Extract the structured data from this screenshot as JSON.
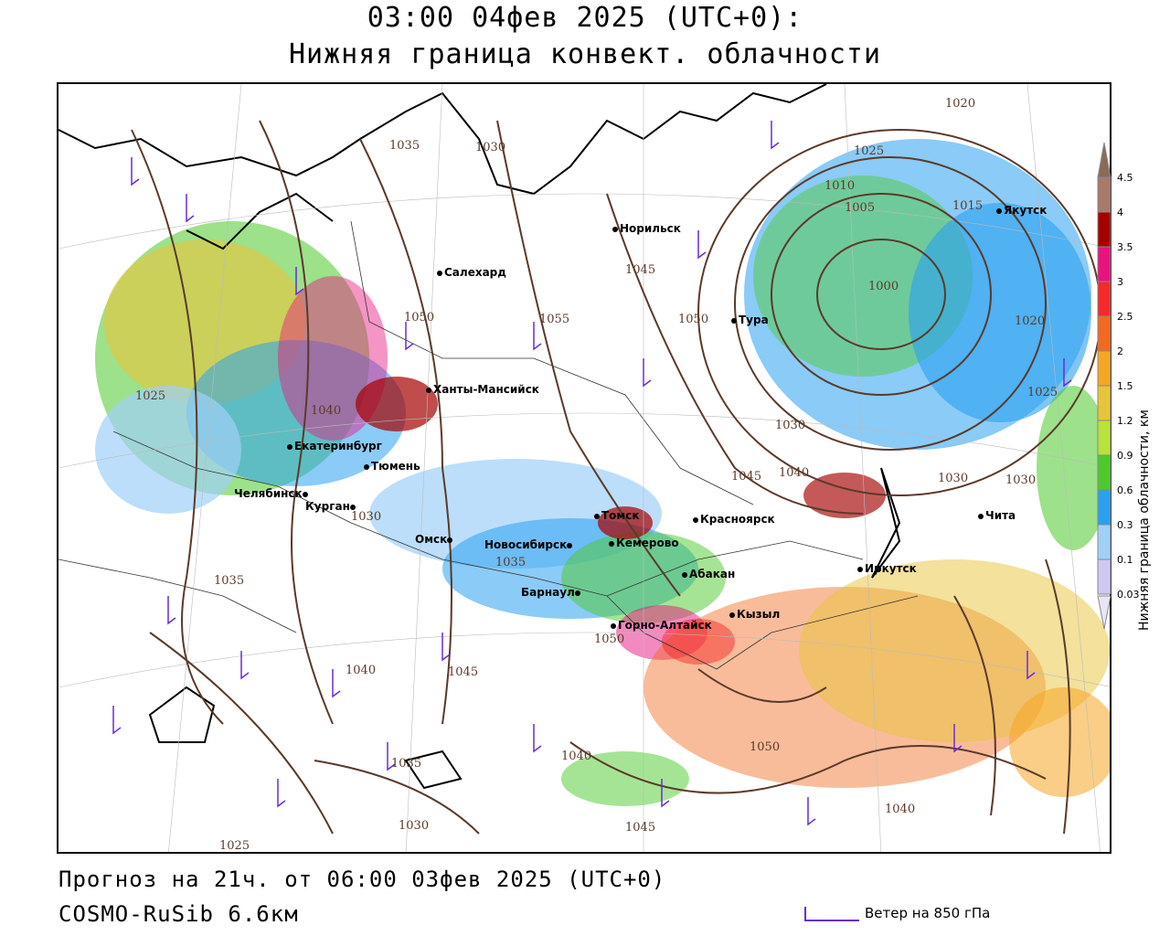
{
  "header": {
    "datetime": "03:00 04фев 2025 (UTC+0):",
    "parameter": "Нижняя граница конвект. облачности"
  },
  "footer": {
    "forecast": "Прогноз на 21ч. от 06:00 03фев 2025 (UTC+0)",
    "model": "COSMO-RuSib 6.6км",
    "wind_legend": "Ветер на 850 гПа"
  },
  "legend": {
    "title": "Нижняя граница облачности, км",
    "ticks": [
      "4.5",
      "4",
      "3.5",
      "3",
      "2.5",
      "2",
      "1.5",
      "1.2",
      "0.9",
      "0.6",
      "0.3",
      "0.1",
      "0.03"
    ],
    "colors": [
      "#a9796a",
      "#a50000",
      "#e8137f",
      "#f52a2a",
      "#f26a1f",
      "#f5a623",
      "#e8c43a",
      "#b9e23b",
      "#4dc92b",
      "#2aa0f0",
      "#9fd0f8",
      "#cfc8f3"
    ]
  },
  "cities": [
    {
      "name": "Норильск"
    },
    {
      "name": "Якутск"
    },
    {
      "name": "Салехард"
    },
    {
      "name": "Тура"
    },
    {
      "name": "Ханты-Мансийск"
    },
    {
      "name": "Екатеринбург"
    },
    {
      "name": "Тюмень"
    },
    {
      "name": "Челябинск"
    },
    {
      "name": "Курган"
    },
    {
      "name": "Омск"
    },
    {
      "name": "Томск"
    },
    {
      "name": "Красноярск"
    },
    {
      "name": "Кемерово"
    },
    {
      "name": "Новосибирск"
    },
    {
      "name": "Абакан"
    },
    {
      "name": "Барнаул"
    },
    {
      "name": "Иркутск"
    },
    {
      "name": "Чита"
    },
    {
      "name": "Кызыл"
    },
    {
      "name": "Горно-Алтайск"
    }
  ],
  "isobars": [
    "1020",
    "1025",
    "1010",
    "1005",
    "1015",
    "1000",
    "1030",
    "1040",
    "1050",
    "1055",
    "1045",
    "1035",
    "1030",
    "1025",
    "1030",
    "1040",
    "1045",
    "1050",
    "1035",
    "1030",
    "1020",
    "1025",
    "1030",
    "1040",
    "1050",
    "1045",
    "1040",
    "1035",
    "1025",
    "1035",
    "1040",
    "1045",
    "1050",
    "1030"
  ],
  "colors": {
    "isobar": "#5a3a2a",
    "wind": "#6a2bd9"
  }
}
